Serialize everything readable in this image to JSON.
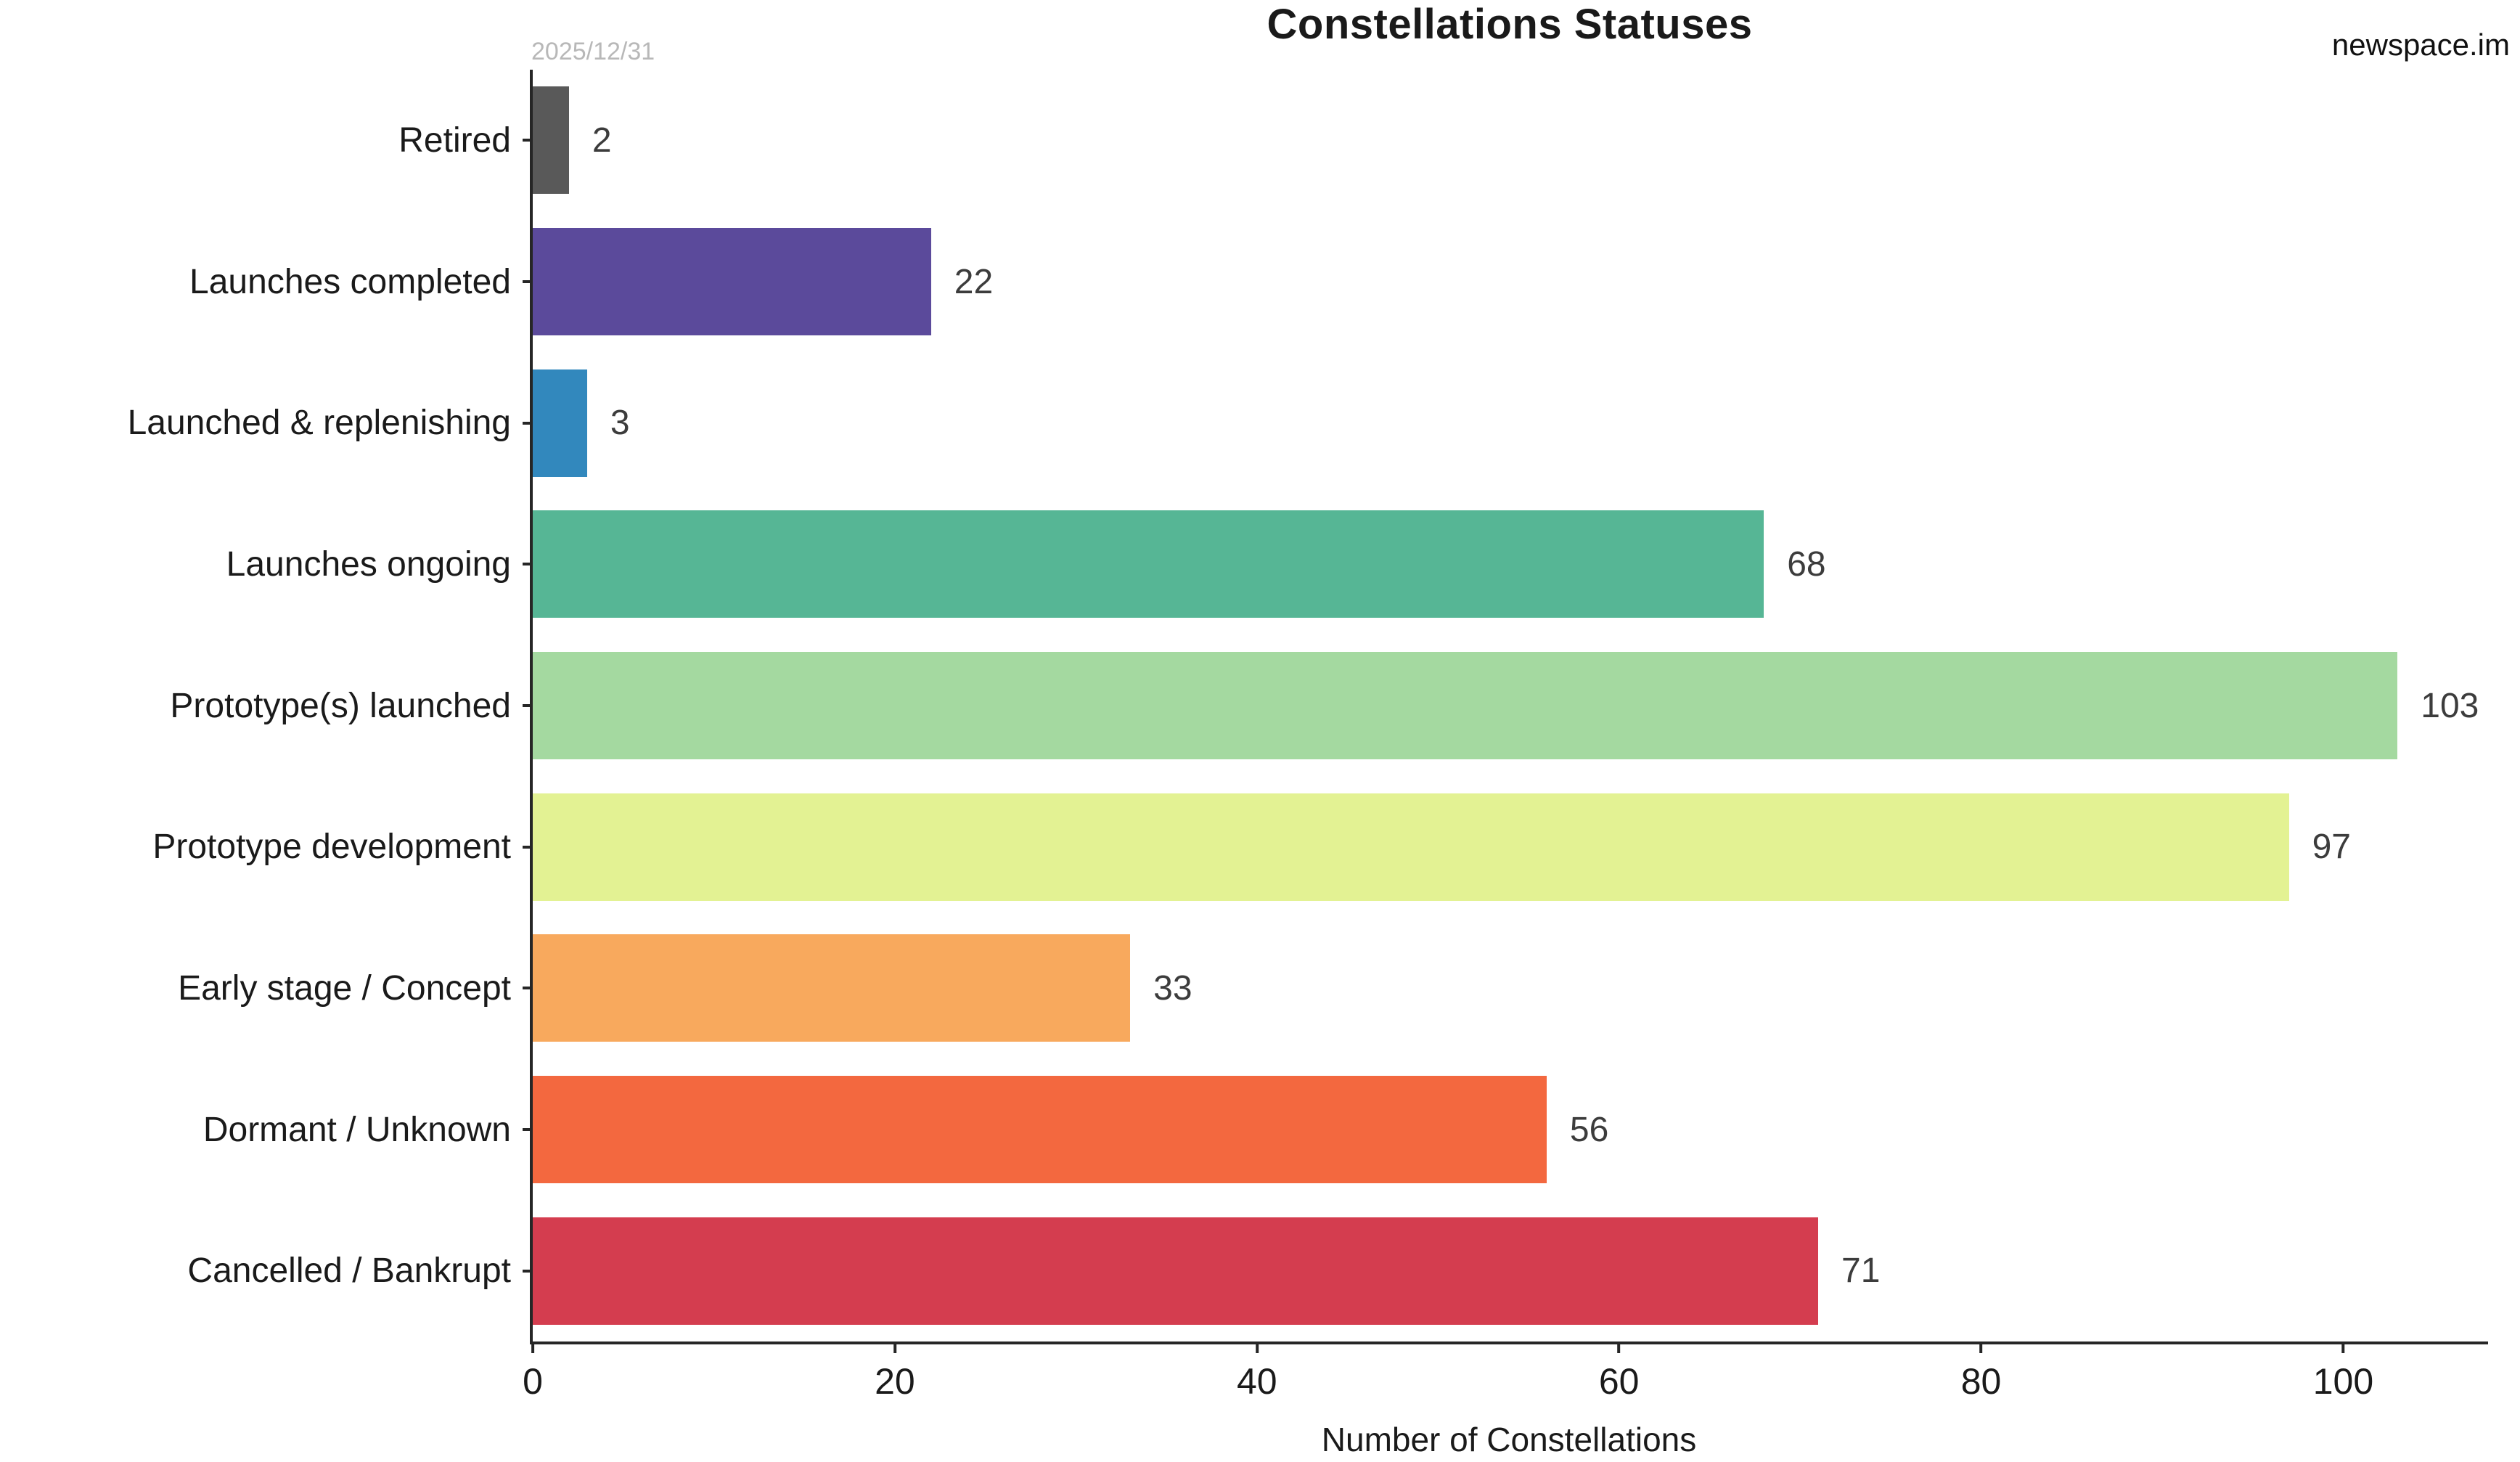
{
  "chart_data": {
    "type": "bar",
    "orientation": "horizontal",
    "title": "Constellations Statuses",
    "date_note": "2025/12/31",
    "watermark": "newspace.im",
    "xlabel": "Number of Constellations",
    "xlim": [
      0,
      108
    ],
    "xticks": [
      0,
      20,
      40,
      60,
      80,
      100
    ],
    "grid": false,
    "legend": "none",
    "categories": [
      "Retired",
      "Launches completed",
      "Launched & replenishing",
      "Launches ongoing",
      "Prototype(s) launched",
      "Prototype development",
      "Early stage / Concept",
      "Dormant / Unknown",
      "Cancelled / Bankrupt"
    ],
    "values": [
      2,
      22,
      3,
      68,
      103,
      97,
      33,
      56,
      71
    ],
    "colors": [
      "#595959",
      "#5b4a9b",
      "#3288bd",
      "#56b695",
      "#a4d9a0",
      "#e3f293",
      "#f8a95d",
      "#f3683f",
      "#d43d4f"
    ],
    "axis_color": "#262626",
    "value_label_color": "#3c3c3c"
  }
}
